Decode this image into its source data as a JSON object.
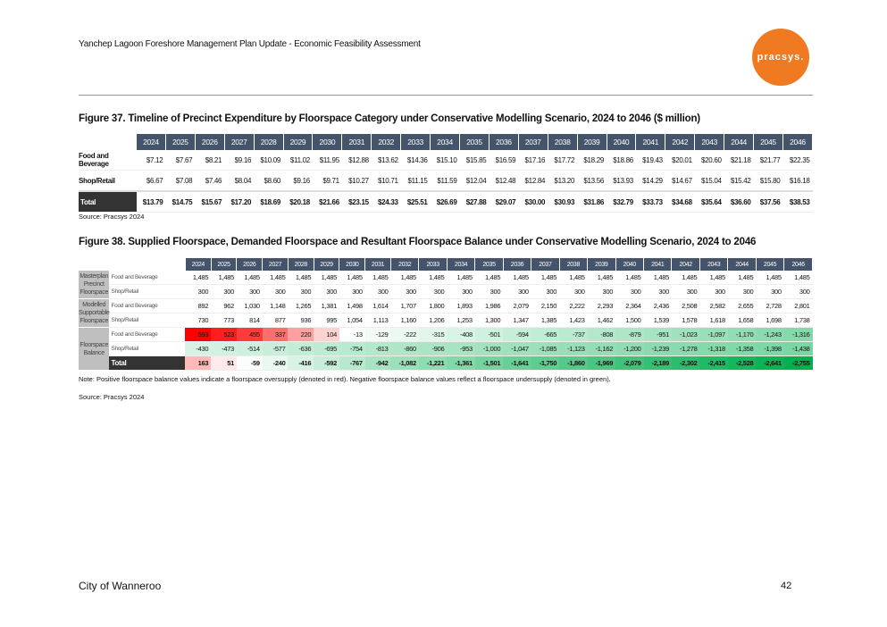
{
  "header": {
    "title": "Yanchep Lagoon Foreshore Management Plan Update - Economic Feasibility Assessment",
    "logo": "pracsys."
  },
  "fig37": {
    "title": "Figure 37. Timeline of Precinct Expenditure by Floorspace Category under Conservative Modelling Scenario, 2024 to 2046 ($ million)",
    "years": [
      "2024",
      "2025",
      "2026",
      "2027",
      "2028",
      "2029",
      "2030",
      "2031",
      "2032",
      "2033",
      "2034",
      "2035",
      "2036",
      "2037",
      "2038",
      "2039",
      "2040",
      "2041",
      "2042",
      "2043",
      "2044",
      "2045",
      "2046"
    ],
    "rows": [
      {
        "label": "Food and Beverage",
        "values": [
          "$7.12",
          "$7.67",
          "$8.21",
          "$9.16",
          "$10.09",
          "$11.02",
          "$11.95",
          "$12.88",
          "$13.62",
          "$14.36",
          "$15.10",
          "$15.85",
          "$16.59",
          "$17.16",
          "$17.72",
          "$18.29",
          "$18.86",
          "$19.43",
          "$20.01",
          "$20.60",
          "$21.18",
          "$21.77",
          "$22.35"
        ]
      },
      {
        "label": "Shop/Retail",
        "values": [
          "$6.67",
          "$7.08",
          "$7.46",
          "$8.04",
          "$8.60",
          "$9.16",
          "$9.71",
          "$10.27",
          "$10.71",
          "$11.15",
          "$11.59",
          "$12.04",
          "$12.48",
          "$12.84",
          "$13.20",
          "$13.56",
          "$13.93",
          "$14.29",
          "$14.67",
          "$15.04",
          "$15.42",
          "$15.80",
          "$16.18"
        ]
      },
      {
        "label": "Total",
        "values": [
          "$13.79",
          "$14.75",
          "$15.67",
          "$17.20",
          "$18.69",
          "$20.18",
          "$21.66",
          "$23.15",
          "$24.33",
          "$25.51",
          "$26.69",
          "$27.88",
          "$29.07",
          "$30.00",
          "$30.93",
          "$31.86",
          "$32.79",
          "$33.73",
          "$34.68",
          "$35.64",
          "$36.60",
          "$37.56",
          "$38.53"
        ]
      }
    ],
    "source": "Source: Pracsys 2024"
  },
  "fig38": {
    "title": "Figure 38. Supplied Floorspace, Demanded Floorspace and Resultant Floorspace Balance under Conservative Modelling Scenario, 2024 to 2046",
    "groups": [
      {
        "label": "Masterplan Precinct Floorspace",
        "rows": [
          {
            "label": "Food and Beverage",
            "values": [
              1485,
              1485,
              1485,
              1485,
              1485,
              1485,
              1485,
              1485,
              1485,
              1485,
              1485,
              1485,
              1485,
              1485,
              1485,
              1485,
              1485,
              1485,
              1485,
              1485,
              1485,
              1485,
              1485
            ]
          },
          {
            "label": "Shop/Retail",
            "values": [
              300,
              300,
              300,
              300,
              300,
              300,
              300,
              300,
              300,
              300,
              300,
              300,
              300,
              300,
              300,
              300,
              300,
              300,
              300,
              300,
              300,
              300,
              300
            ]
          }
        ]
      },
      {
        "label": "Modelled Supportable Floorspace",
        "rows": [
          {
            "label": "Food and Beverage",
            "values": [
              892,
              962,
              1030,
              1148,
              1265,
              1381,
              1498,
              1614,
              1707,
              1800,
              1893,
              1986,
              2079,
              2150,
              2222,
              2293,
              2364,
              2436,
              2508,
              2582,
              2655,
              2728,
              2801
            ]
          },
          {
            "label": "Shop/Retail",
            "values": [
              730,
              773,
              814,
              877,
              936,
              995,
              1054,
              1113,
              1160,
              1206,
              1253,
              1300,
              1347,
              1385,
              1423,
              1462,
              1500,
              1539,
              1578,
              1618,
              1658,
              1698,
              1738
            ]
          }
        ]
      },
      {
        "label": "Floorspace Balance",
        "heat": true,
        "rows": [
          {
            "label": "Food and Beverage",
            "values": [
              593,
              523,
              455,
              337,
              220,
              104,
              -13,
              -129,
              -222,
              -315,
              -408,
              -501,
              -594,
              -665,
              -737,
              -808,
              -879,
              -951,
              -1023,
              -1097,
              -1170,
              -1243,
              -1316
            ]
          },
          {
            "label": "Shop/Retail",
            "values": [
              -430,
              -473,
              -514,
              -577,
              -636,
              -695,
              -754,
              -813,
              -860,
              -906,
              -953,
              -1000,
              -1047,
              -1085,
              -1123,
              -1162,
              -1200,
              -1239,
              -1278,
              -1318,
              -1358,
              -1398,
              -1438
            ]
          },
          {
            "label": "Total",
            "total": true,
            "values": [
              163,
              51,
              -59,
              -240,
              -416,
              -592,
              -767,
              -942,
              -1082,
              -1221,
              -1361,
              -1501,
              -1641,
              -1750,
              -1860,
              -1969,
              -2079,
              -2189,
              -2302,
              -2415,
              -2528,
              -2641,
              -2755
            ]
          }
        ]
      }
    ],
    "note": "Note: Positive floorspace balance values indicate a floorspace oversupply (denoted in red). Negative floorspace balance values reflect a floorspace undersupply (denoted in green).",
    "source": "Source: Pracsys 2024",
    "colors": {
      "positive": "#ff0000",
      "negative": "#00b050"
    }
  },
  "footer": {
    "org": "City of Wanneroo",
    "page": "42"
  }
}
